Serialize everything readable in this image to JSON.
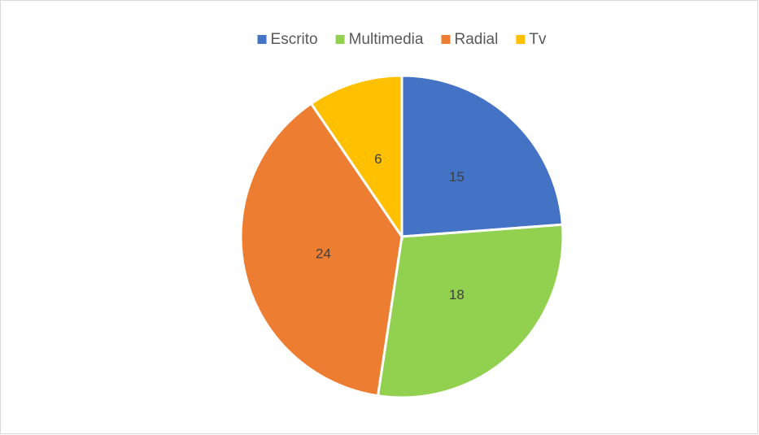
{
  "chart_data": {
    "type": "pie",
    "categories": [
      "Escrito",
      "Multimedia",
      "Radial",
      "Tv"
    ],
    "values": [
      15,
      18,
      24,
      6
    ],
    "colors": [
      "#4472c4",
      "#92d050",
      "#ed7d31",
      "#ffc000"
    ],
    "legend": "top"
  }
}
